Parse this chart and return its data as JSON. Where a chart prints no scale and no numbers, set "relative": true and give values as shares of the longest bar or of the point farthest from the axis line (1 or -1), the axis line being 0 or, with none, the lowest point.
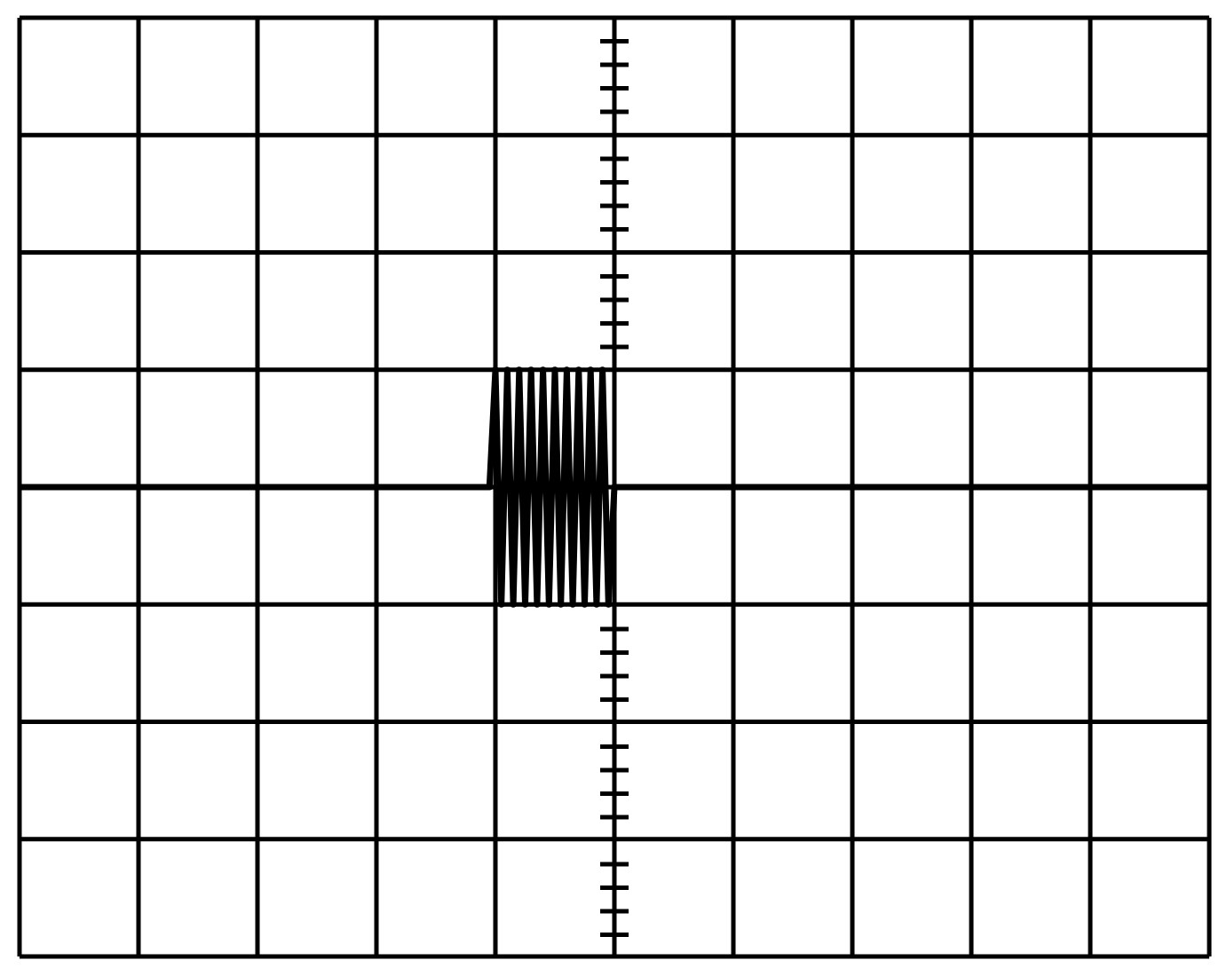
{
  "chart_data": {
    "type": "line",
    "relative": true,
    "grid": true,
    "tick_labels": false,
    "marker": "none",
    "categories": [
      null,
      null,
      null,
      null,
      null,
      null,
      null,
      null,
      null,
      null,
      null,
      null,
      null,
      null,
      null,
      null,
      null,
      null,
      null,
      null,
      null,
      null,
      null,
      null,
      null,
      null,
      null,
      null,
      null,
      null,
      null,
      null,
      null,
      null,
      null,
      null,
      null,
      null,
      null,
      null,
      null,
      null,
      null,
      null,
      null,
      null,
      null,
      null,
      null,
      null,
      null,
      null,
      null,
      null,
      null,
      null,
      null,
      null,
      null,
      null,
      null,
      null,
      null,
      null,
      null,
      null,
      null,
      null,
      null,
      null,
      null,
      null,
      null,
      null,
      null,
      null,
      null,
      null,
      null,
      null,
      null,
      null,
      null,
      null,
      null,
      null,
      null,
      null,
      null,
      null,
      null,
      null,
      null,
      null,
      null,
      null,
      null,
      null,
      null,
      null,
      null,
      null,
      null,
      null,
      null,
      null,
      null,
      null,
      null,
      null,
      null,
      null,
      null,
      null,
      null,
      null,
      null,
      null,
      null,
      null,
      null,
      null,
      null,
      null,
      null,
      null,
      null,
      null,
      null,
      null,
      null,
      null,
      null,
      null,
      null,
      null,
      null,
      null,
      null,
      null,
      null,
      null,
      null,
      null,
      null,
      null,
      null,
      null,
      null,
      null,
      null,
      null,
      null,
      null,
      null,
      null,
      null,
      null,
      null,
      null,
      null,
      null,
      null,
      null,
      null,
      null,
      null,
      null,
      null,
      null,
      null,
      null,
      null,
      null,
      null,
      null,
      null,
      null,
      null,
      null,
      null,
      null,
      null,
      null,
      null,
      null,
      null,
      null,
      null,
      null,
      null,
      null,
      null,
      null,
      null,
      null,
      null,
      null,
      null,
      null,
      null
    ],
    "series": [
      {
        "color": "#000000",
        "values": [
          0,
          0,
          0,
          0,
          0,
          0,
          0,
          0,
          0,
          0,
          0,
          0,
          0,
          0,
          0,
          0,
          0,
          0,
          0,
          0,
          0,
          0,
          0,
          0,
          0,
          0,
          0,
          0,
          0,
          0,
          0,
          0,
          0,
          0,
          0,
          0,
          0,
          0,
          0,
          0,
          0,
          0,
          0,
          0,
          0,
          0,
          0,
          0,
          0,
          0,
          0,
          0,
          0,
          0,
          0,
          0,
          0,
          0,
          0,
          0,
          0,
          0,
          0,
          0,
          0,
          0,
          0,
          0,
          0,
          0,
          0,
          0,
          0,
          0,
          0,
          0,
          0,
          0,
          0,
          0,
          1,
          -1,
          1,
          -1,
          1,
          -1,
          1,
          -1,
          1,
          -1,
          1,
          -1,
          1,
          -1,
          1,
          -1,
          1,
          -1,
          1,
          -1,
          0,
          0,
          0,
          0,
          0,
          0,
          0,
          0,
          0,
          0,
          0,
          0,
          0,
          0,
          0,
          0,
          0,
          0,
          0,
          0,
          0,
          0,
          0,
          0,
          0,
          0,
          0,
          0,
          0,
          0,
          0,
          0,
          0,
          0,
          0,
          0,
          0,
          0,
          0,
          0,
          0,
          0,
          0,
          0,
          0,
          0,
          0,
          0,
          0,
          0,
          0,
          0,
          0,
          0,
          0,
          0,
          0,
          0,
          0,
          0,
          0,
          0,
          0,
          0,
          0,
          0,
          0,
          0,
          0,
          0,
          0,
          0,
          0,
          0,
          0,
          0,
          0,
          0,
          0,
          0,
          0,
          0,
          0,
          0,
          0,
          0,
          0,
          0,
          0,
          0,
          0,
          0,
          0,
          0,
          0,
          0,
          0,
          0,
          0,
          0,
          0
        ]
      }
    ]
  }
}
